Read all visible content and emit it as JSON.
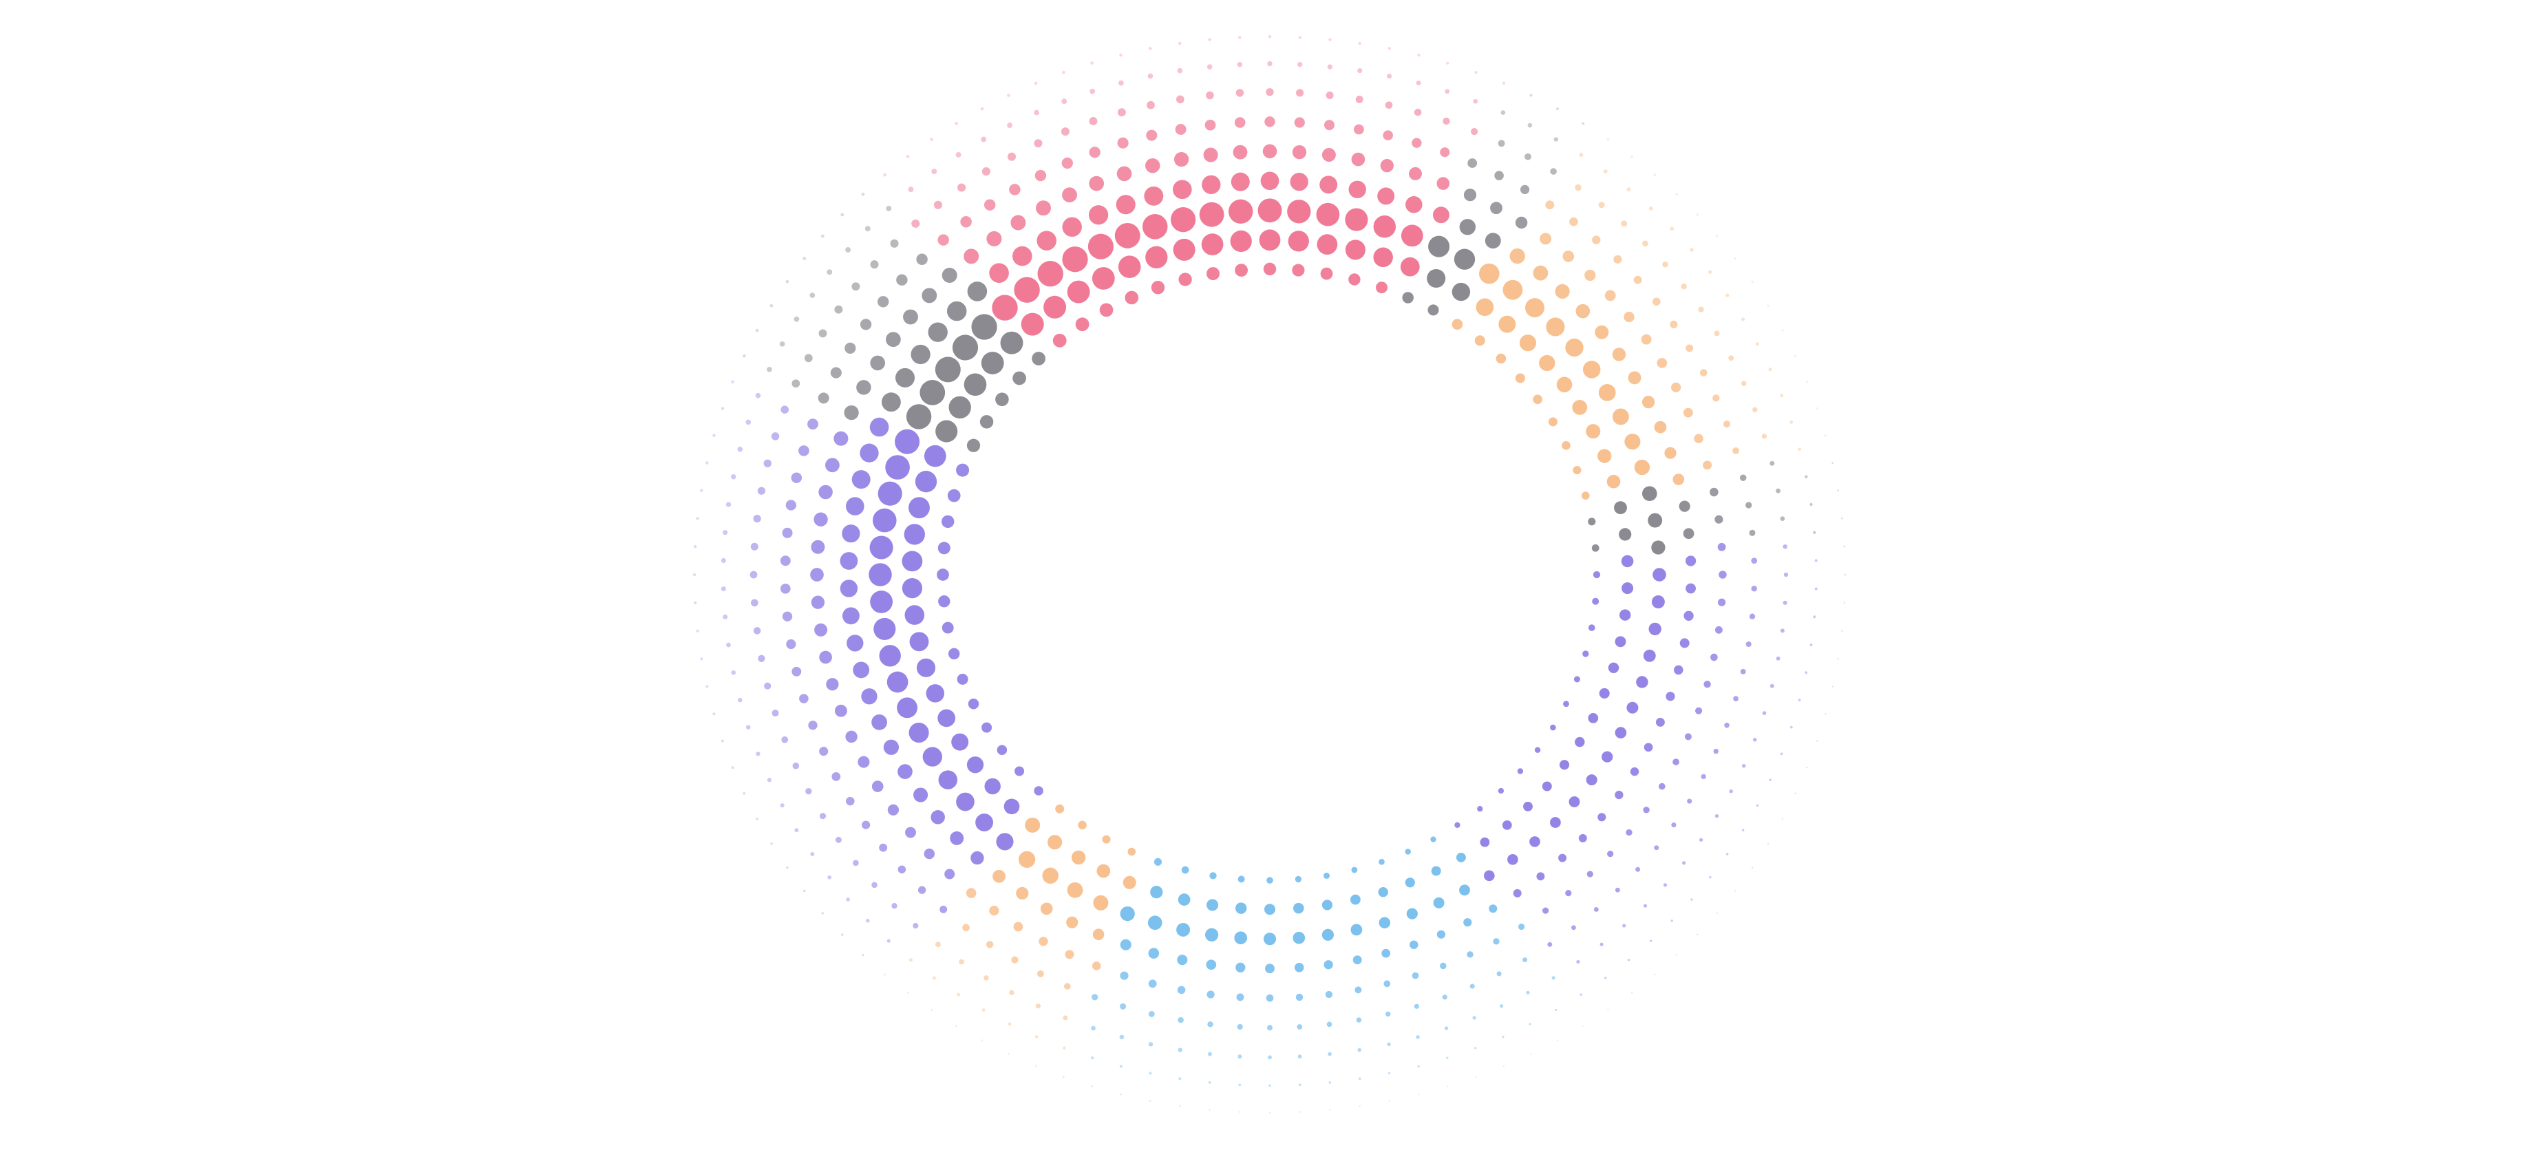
{
  "canvas": {
    "background": "#ffffff"
  },
  "artwork": {
    "subject": "halftone-dot-ring",
    "colors": {
      "pink": "#f07a96",
      "purple": "#9584e6",
      "peach": "#f8c08e",
      "blue": "#7cc0ee",
      "gray": "#8a8a90",
      "lilac": "#e9b6ee"
    },
    "segments": [
      {
        "color_key": "purple",
        "from_deg": 158,
        "to_deg": 228
      },
      {
        "color_key": "gray",
        "from_deg": 134,
        "to_deg": 158
      },
      {
        "color_key": "pink",
        "from_deg": 66,
        "to_deg": 134
      },
      {
        "color_key": "gray",
        "from_deg": 56,
        "to_deg": 66
      },
      {
        "color_key": "peach",
        "from_deg": 14,
        "to_deg": 56
      },
      {
        "color_key": "gray",
        "from_deg": 4,
        "to_deg": 14
      },
      {
        "color_key": "purple",
        "from_deg": -56,
        "to_deg": 4
      },
      {
        "color_key": "blue",
        "from_deg": -112,
        "to_deg": -56
      },
      {
        "color_key": "peach",
        "from_deg": -158,
        "to_deg": -112
      },
      {
        "color_key": "lilac",
        "from_deg": -160,
        "to_deg": -158
      },
      {
        "color_key": "purple",
        "from_deg": -202,
        "to_deg": -160
      }
    ]
  }
}
